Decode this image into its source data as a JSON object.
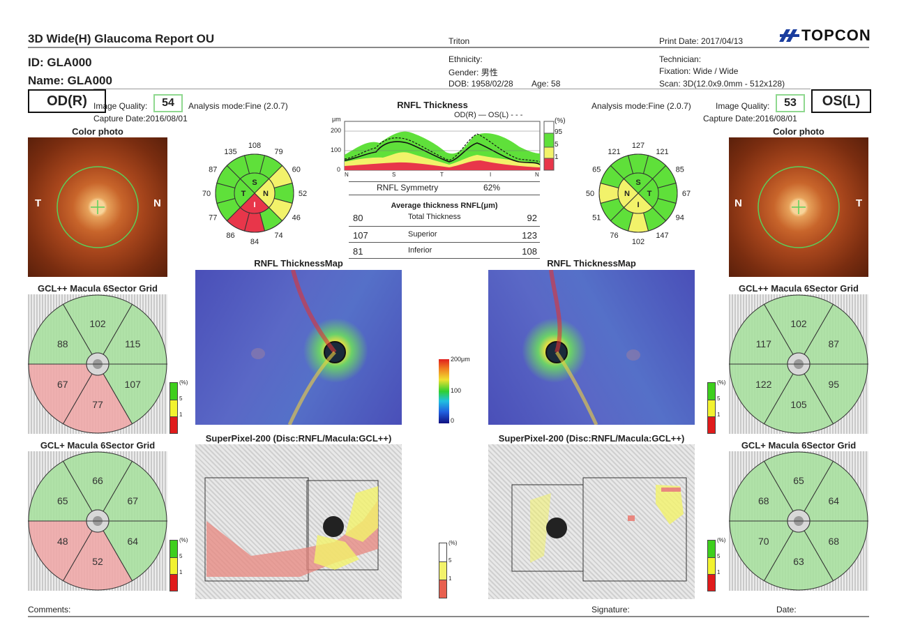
{
  "header": {
    "title": "3D Wide(H) Glaucoma Report OU",
    "device": "Triton",
    "print_date": "Print Date: 2017/04/13",
    "brand": "TOPCON",
    "id": "ID: GLA000",
    "name": "Name: GLA000",
    "ethnicity": "Ethnicity:",
    "gender": "Gender: 男性",
    "dob": "DOB: 1958/02/28",
    "age": "Age: 58",
    "technician": "Technician:",
    "fixation": "Fixation: Wide / Wide",
    "scan": "Scan: 3D(12.0x9.0mm - 512x128)"
  },
  "od": {
    "eye": "OD(R)",
    "iq_label": "Image Quality:",
    "iq_value": "54",
    "analysis": "Analysis mode:Fine (2.0.7)",
    "capture": "Capture Date:2016/08/01",
    "photo_title": "Color photo",
    "photo_left": "T",
    "photo_right": "N",
    "clock": [
      "108",
      "79",
      "60",
      "52",
      "46",
      "74",
      "84",
      "86",
      "77",
      "70",
      "87",
      "135"
    ],
    "quad": [
      "S",
      "N",
      "I",
      "T"
    ],
    "gclpp_title": "GCL++ Macula 6Sector Grid",
    "gclpp": [
      "102",
      "115",
      "107",
      "77",
      "67",
      "88"
    ],
    "gclp_title": "GCL+ Macula 6Sector Grid",
    "gclp": [
      "66",
      "67",
      "64",
      "52",
      "48",
      "65"
    ],
    "map_title": "RNFL ThicknessMap",
    "sp_title": "SuperPixel-200 (Disc:RNFL/Macula:GCL++)"
  },
  "os": {
    "eye": "OS(L)",
    "iq_label": "Image Quality:",
    "iq_value": "53",
    "analysis": "Analysis mode:Fine (2.0.7)",
    "capture": "Capture Date:2016/08/01",
    "photo_title": "Color photo",
    "photo_left": "N",
    "photo_right": "T",
    "clock": [
      "127",
      "121",
      "85",
      "67",
      "94",
      "147",
      "102",
      "76",
      "51",
      "50",
      "65",
      "121"
    ],
    "quad": [
      "S",
      "T",
      "I",
      "N"
    ],
    "gclpp_title": "GCL++ Macula 6Sector Grid",
    "gclpp": [
      "102",
      "87",
      "95",
      "105",
      "122",
      "117"
    ],
    "gclp_title": "GCL+ Macula 6Sector Grid",
    "gclp": [
      "65",
      "64",
      "68",
      "63",
      "70",
      "68"
    ],
    "map_title": "RNFL ThicknessMap",
    "sp_title": "SuperPixel-200 (Disc:RNFL/Macula:GCL++)"
  },
  "rnfl_chart": {
    "title": "RNFL Thickness",
    "unit": "μm",
    "legend": "OD(R) —   OS(L) - - -",
    "y_ticks": [
      "200",
      "100",
      "0"
    ],
    "x_ticks": [
      "N",
      "S",
      "T",
      "I",
      "N"
    ],
    "pct_label": "(%)",
    "pct_ticks": [
      "95",
      "5",
      "1"
    ]
  },
  "symmetry": {
    "label": "RNFL Symmetry",
    "value": "62%"
  },
  "avg": {
    "title": "Average thickness RNFL(μm)",
    "rows": [
      {
        "od": "80",
        "label": "Total Thickness",
        "os": "92"
      },
      {
        "od": "107",
        "label": "Superior",
        "os": "123"
      },
      {
        "od": "81",
        "label": "Inferior",
        "os": "108"
      }
    ]
  },
  "colorbar": {
    "top": "200μm",
    "mid": "100",
    "bottom": "0"
  },
  "pct_legend": {
    "label": "(%)",
    "t1": "5",
    "t2": "1"
  },
  "sp_legend": {
    "label": "(%)",
    "t1": "5",
    "t2": "1"
  },
  "footer": {
    "comments": "Comments:",
    "signature": "Signature:",
    "date": "Date:"
  },
  "colors": {
    "green": "#5fe03a",
    "yellow": "#f2f26a",
    "red": "#e8364a",
    "grid_green": "#a8e0a0",
    "grid_red": "#eea8a8"
  }
}
